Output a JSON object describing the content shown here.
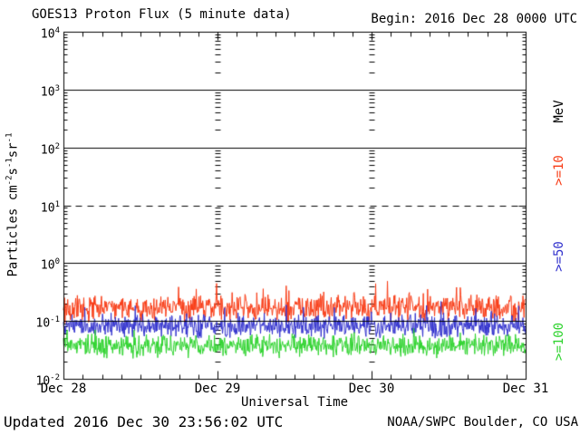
{
  "window": {
    "background": "#ffffff",
    "axis_color": "#000000"
  },
  "header": {
    "title": "GOES13 Proton Flux (5 minute data)",
    "begin": "Begin: 2016 Dec 28 0000 UTC"
  },
  "footer": {
    "updated": "Updated 2016 Dec 30 23:56:02 UTC",
    "source": "NOAA/SWPC Boulder, CO USA"
  },
  "chart_data": {
    "type": "line",
    "title": "GOES13 Proton Flux (5 minute data)",
    "begin_time": "2016 Dec 28 0000 UTC",
    "updated_time": "2016 Dec 30 23:56:02 UTC",
    "xlabel": "Universal Time",
    "ylabel": "Particles cm-2s-1sr-1",
    "ylabel_parts": [
      [
        "Particles cm",
        "-2"
      ],
      [
        "s",
        "-1"
      ],
      [
        "sr",
        "-1"
      ]
    ],
    "x_axis": {
      "tick_labels": [
        "Dec 28",
        "Dec 29",
        "Dec 30",
        "Dec 31"
      ],
      "span_days": 3,
      "minor_ticks_per_day": 8,
      "day_boundary_dash_columns": [
        "Dec 29",
        "Dec 30"
      ]
    },
    "y_axis": {
      "scale": "log10",
      "exponent_range": [
        -2,
        4
      ],
      "tick_exponents": [
        4,
        3,
        2,
        1,
        0,
        -1,
        -2
      ]
    },
    "grid": {
      "solid_line_exponents": [
        3,
        2,
        0,
        -1
      ],
      "dashed_line_exponents": [
        1
      ]
    },
    "right_axis": {
      "unit_label": "MeV",
      "unit_color": "#000000"
    },
    "samples_per_day": 288,
    "series": [
      {
        "label": ">=10",
        "threshold_mev": 10,
        "color": "#f83c16",
        "mean_flux": 0.17,
        "typical_min": 0.09,
        "typical_max": 0.45,
        "base_log10": -0.78,
        "noise_log10": 0.17,
        "spike_chance": 0.1,
        "spike_log10": 0.3,
        "seed": 1234567
      },
      {
        "label": ">=50",
        "threshold_mev": 50,
        "color": "#3232cd",
        "mean_flux": 0.08,
        "typical_min": 0.045,
        "typical_max": 0.18,
        "base_log10": -1.1,
        "noise_log10": 0.15,
        "spike_chance": 0.08,
        "spike_log10": 0.25,
        "seed": 7654321
      },
      {
        "label": ">=100",
        "threshold_mev": 100,
        "color": "#2fd32f",
        "mean_flux": 0.038,
        "typical_min": 0.02,
        "typical_max": 0.08,
        "base_log10": -1.43,
        "noise_log10": 0.15,
        "spike_chance": 0.08,
        "spike_log10": 0.22,
        "seed": 246801
      }
    ]
  }
}
